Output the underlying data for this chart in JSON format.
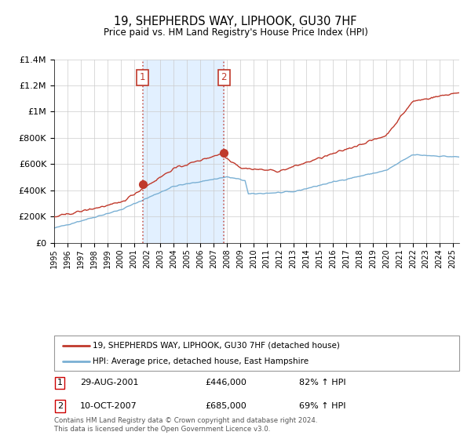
{
  "title": "19, SHEPHERDS WAY, LIPHOOK, GU30 7HF",
  "subtitle": "Price paid vs. HM Land Registry's House Price Index (HPI)",
  "ylim": [
    0,
    1400000
  ],
  "xlim_start": 1995.0,
  "xlim_end": 2025.5,
  "ytick_labels": [
    "£0",
    "£200K",
    "£400K",
    "£600K",
    "£800K",
    "£1M",
    "£1.2M",
    "£1.4M"
  ],
  "ytick_values": [
    0,
    200000,
    400000,
    600000,
    800000,
    1000000,
    1200000,
    1400000
  ],
  "xtick_labels": [
    "1995",
    "1996",
    "1997",
    "1998",
    "1999",
    "2000",
    "2001",
    "2002",
    "2003",
    "2004",
    "2005",
    "2006",
    "2007",
    "2008",
    "2009",
    "2010",
    "2011",
    "2012",
    "2013",
    "2014",
    "2015",
    "2016",
    "2017",
    "2018",
    "2019",
    "2020",
    "2021",
    "2022",
    "2023",
    "2024",
    "2025"
  ],
  "sale1_date": 2001.66,
  "sale1_price": 446000,
  "sale1_label": "1",
  "sale2_date": 2007.78,
  "sale2_price": 685000,
  "sale2_label": "2",
  "hpi_color": "#7ab0d4",
  "price_color": "#c0392b",
  "bg_color": "#ffffff",
  "grid_color": "#cccccc",
  "shade_color": "#ddeeff",
  "legend_label_price": "19, SHEPHERDS WAY, LIPHOOK, GU30 7HF (detached house)",
  "legend_label_hpi": "HPI: Average price, detached house, East Hampshire",
  "table_row1": [
    "1",
    "29-AUG-2001",
    "£446,000",
    "82% ↑ HPI"
  ],
  "table_row2": [
    "2",
    "10-OCT-2007",
    "£685,000",
    "69% ↑ HPI"
  ],
  "footnote": "Contains HM Land Registry data © Crown copyright and database right 2024.\nThis data is licensed under the Open Government Licence v3.0."
}
